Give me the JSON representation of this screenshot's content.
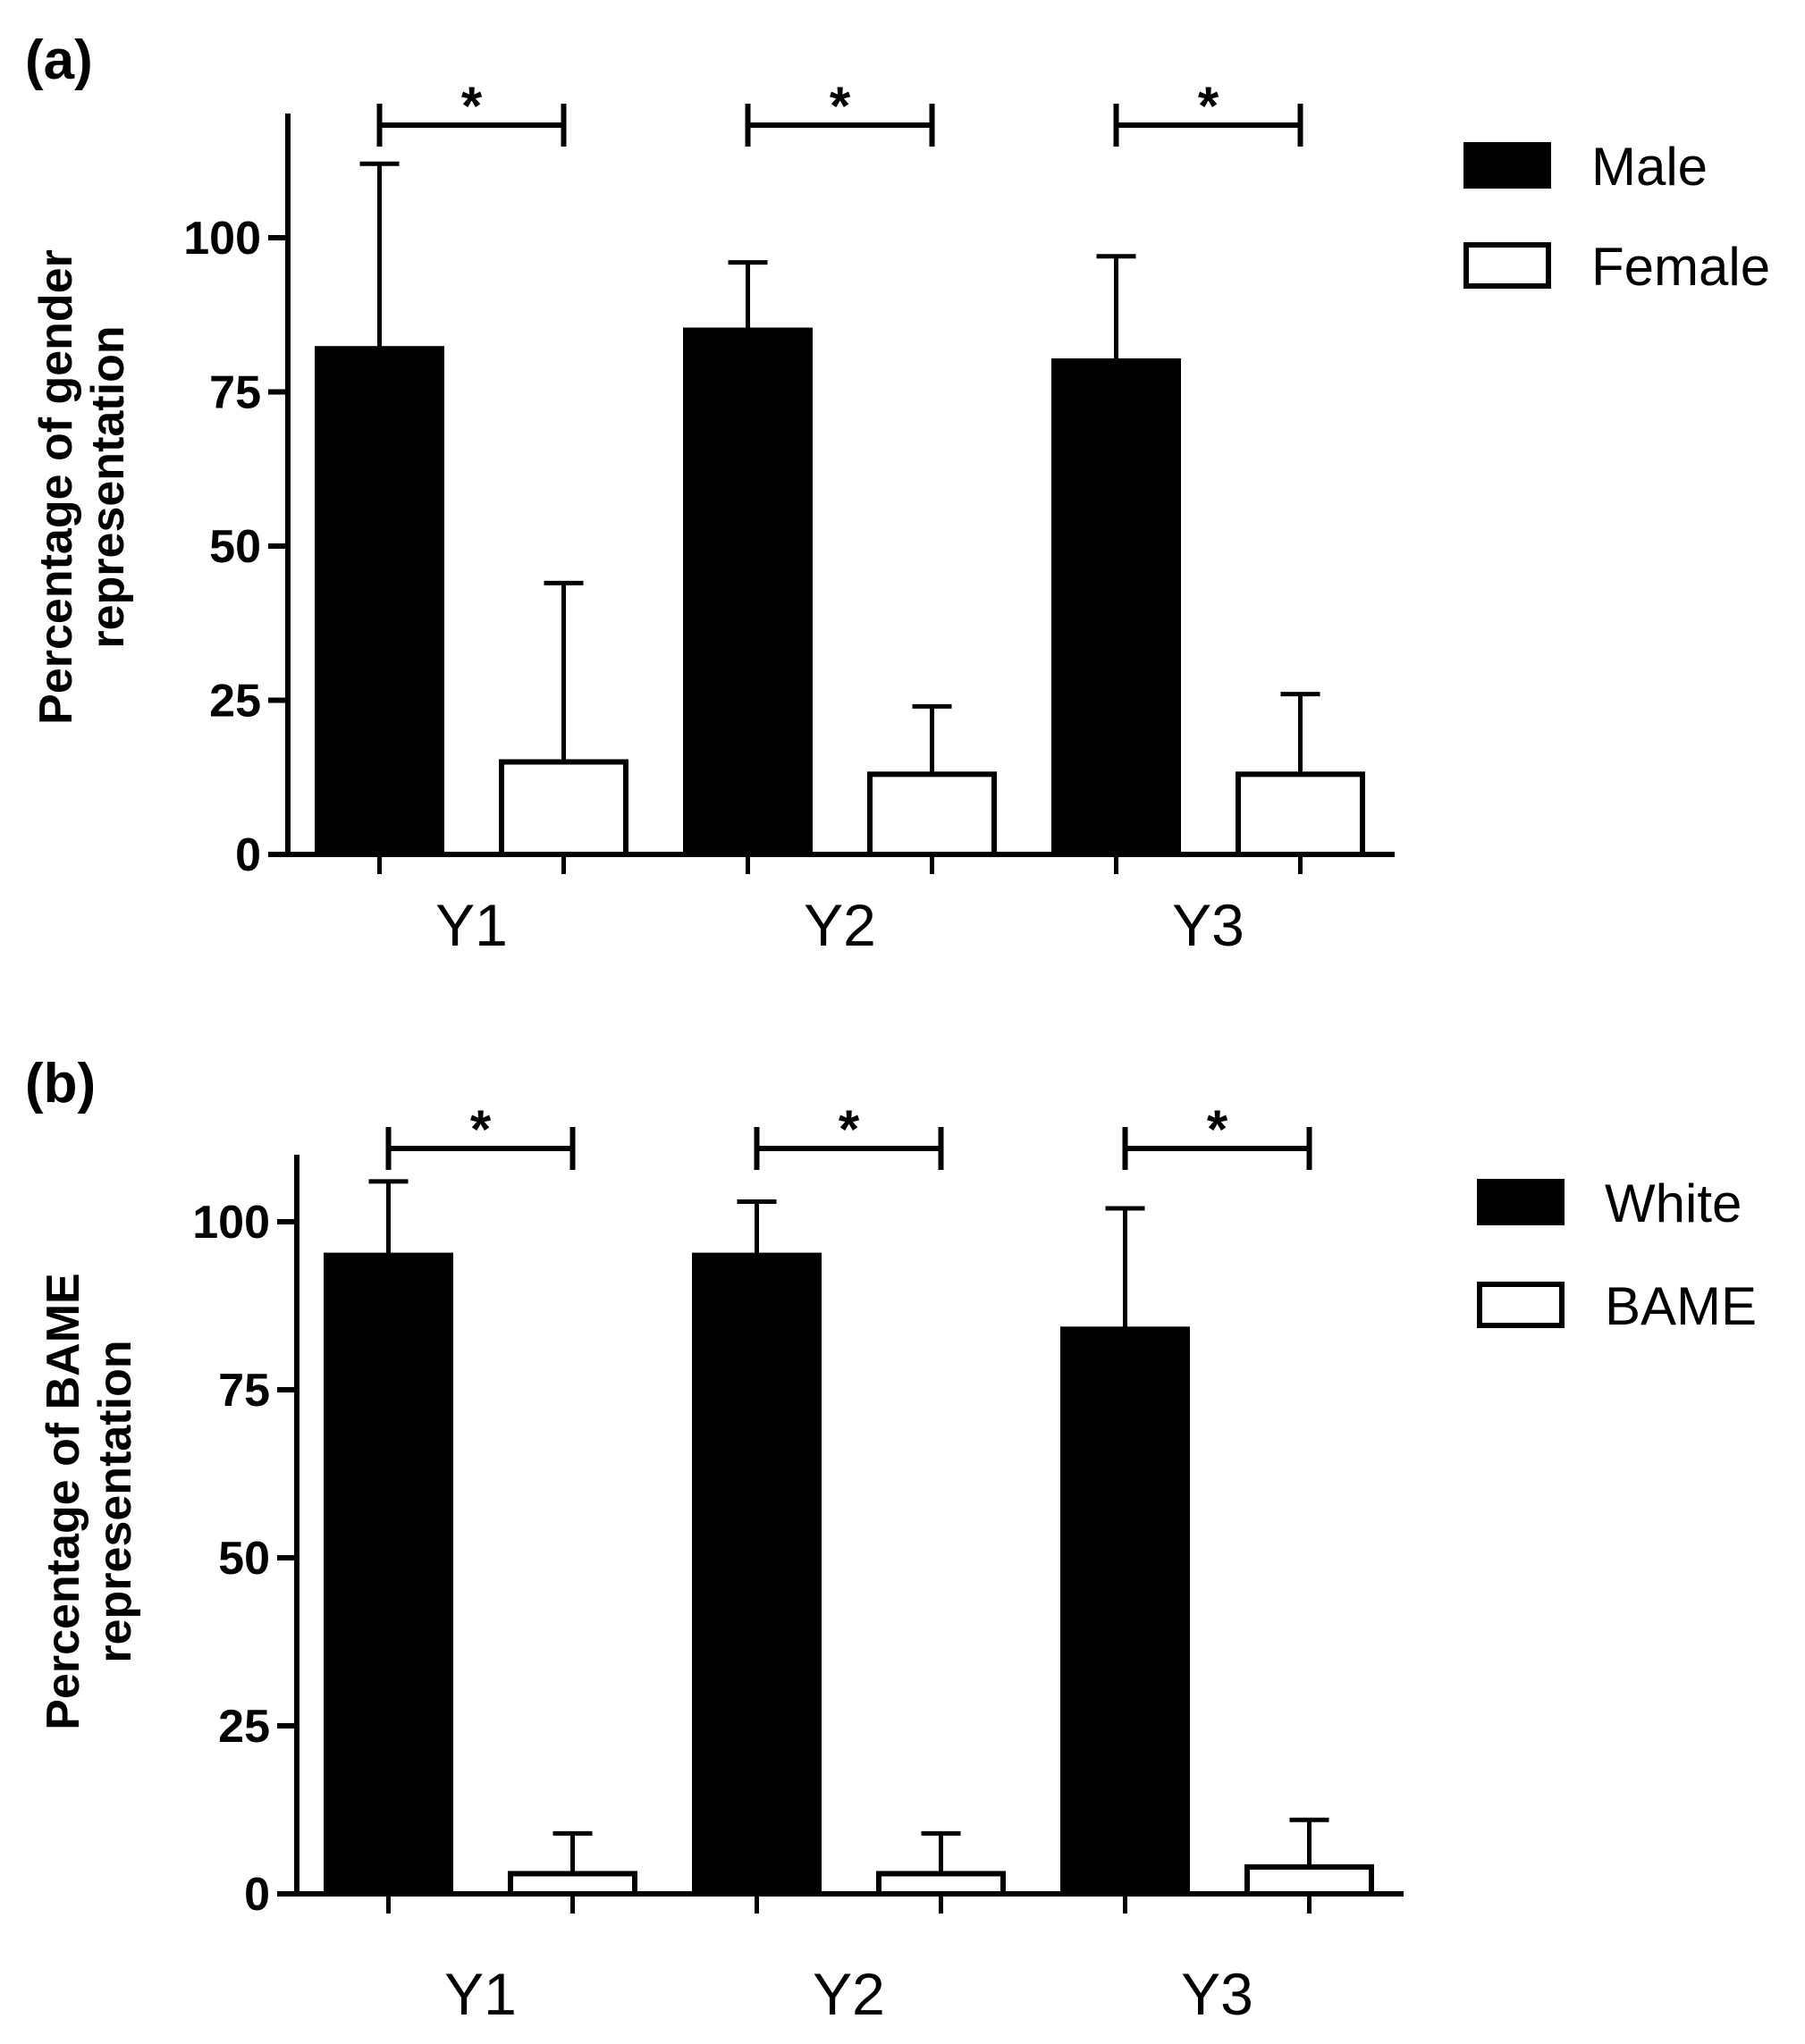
{
  "chart_data": [
    {
      "type": "bar",
      "panel_label": "(a)",
      "title": "",
      "xlabel": "",
      "ylabel_lines": [
        "Percentage of gender",
        "representation"
      ],
      "categories": [
        "Y1",
        "Y2",
        "Y3"
      ],
      "ylim": [
        0,
        120
      ],
      "yticks": [
        0,
        25,
        50,
        75,
        100
      ],
      "grid": false,
      "legend_position": "top-right",
      "series": [
        {
          "name": "Male",
          "fill": "#000000",
          "values": [
            82,
            85,
            80
          ],
          "errors": [
            30,
            11,
            17
          ]
        },
        {
          "name": "Female",
          "fill": "#ffffff",
          "values": [
            15,
            13,
            13
          ],
          "errors": [
            29,
            11,
            13
          ]
        }
      ],
      "significance": [
        "*",
        "*",
        "*"
      ]
    },
    {
      "type": "bar",
      "panel_label": "(b)",
      "title": "",
      "xlabel": "",
      "ylabel_lines": [
        "Percentage of BAME",
        "representation"
      ],
      "categories": [
        "Y1",
        "Y2",
        "Y3"
      ],
      "ylim": [
        0,
        110
      ],
      "yticks": [
        0,
        25,
        50,
        75,
        100
      ],
      "grid": false,
      "legend_position": "top-right",
      "series": [
        {
          "name": "White",
          "fill": "#000000",
          "values": [
            95,
            95,
            84
          ],
          "errors": [
            11,
            8,
            18
          ]
        },
        {
          "name": "BAME",
          "fill": "#ffffff",
          "values": [
            3,
            3,
            4
          ],
          "errors": [
            6,
            6,
            7
          ]
        }
      ],
      "significance": [
        "*",
        "*",
        "*"
      ]
    }
  ]
}
